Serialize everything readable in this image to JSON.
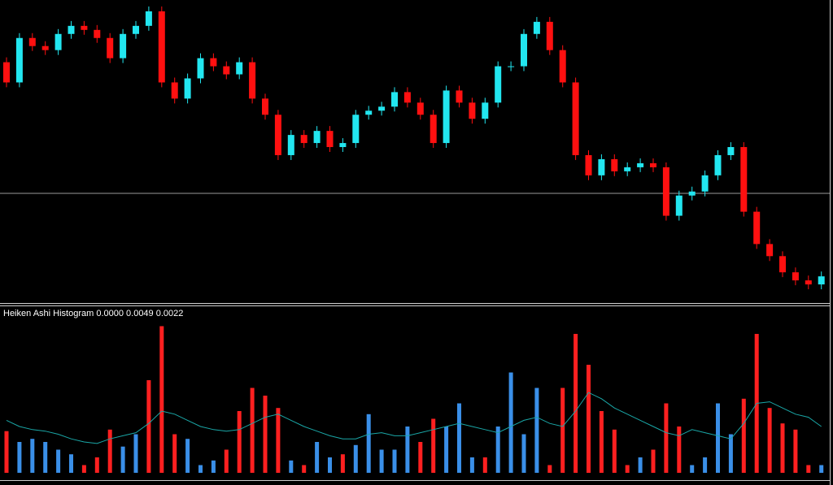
{
  "chart_data": [
    {
      "type": "candlestick",
      "up_color": "#22e6f0",
      "down_color": "#ff1010",
      "ylim": [
        0,
        370
      ],
      "open": [
        295,
        270,
        325,
        315,
        310,
        330,
        340,
        335,
        325,
        300,
        330,
        340,
        358,
        270,
        250,
        275,
        300,
        290,
        280,
        295,
        250,
        230,
        180,
        205,
        195,
        210,
        190,
        195,
        230,
        235,
        240,
        258,
        245,
        230,
        195,
        260,
        245,
        225,
        245,
        290,
        290,
        330,
        345,
        310,
        270,
        180,
        155,
        175,
        160,
        165,
        170,
        165,
        105,
        130,
        135,
        155,
        180,
        190,
        110,
        70,
        55,
        35,
        25,
        20
      ],
      "high": [
        301,
        331,
        331,
        321,
        336,
        346,
        346,
        341,
        331,
        336,
        346,
        364,
        364,
        276,
        281,
        306,
        306,
        296,
        301,
        301,
        256,
        236,
        211,
        211,
        216,
        216,
        201,
        236,
        241,
        246,
        264,
        264,
        251,
        236,
        266,
        266,
        251,
        251,
        296,
        296,
        336,
        351,
        351,
        316,
        276,
        186,
        181,
        181,
        171,
        176,
        176,
        171,
        136,
        141,
        161,
        186,
        196,
        196,
        116,
        76,
        61,
        41,
        31,
        36
      ],
      "low": [
        264,
        264,
        309,
        304,
        304,
        324,
        329,
        319,
        294,
        294,
        324,
        334,
        264,
        244,
        244,
        269,
        284,
        274,
        274,
        244,
        224,
        174,
        174,
        189,
        189,
        184,
        184,
        189,
        224,
        229,
        234,
        239,
        224,
        189,
        189,
        239,
        219,
        219,
        239,
        284,
        284,
        324,
        304,
        264,
        174,
        149,
        149,
        154,
        154,
        159,
        159,
        99,
        99,
        124,
        129,
        149,
        174,
        104,
        64,
        49,
        29,
        19,
        14,
        14
      ],
      "close": [
        270,
        325,
        315,
        310,
        330,
        340,
        335,
        325,
        300,
        330,
        340,
        358,
        270,
        250,
        275,
        300,
        290,
        280,
        295,
        250,
        230,
        180,
        205,
        195,
        210,
        190,
        195,
        230,
        235,
        240,
        258,
        245,
        230,
        195,
        260,
        245,
        225,
        245,
        290,
        290,
        330,
        345,
        310,
        270,
        180,
        155,
        175,
        160,
        165,
        170,
        165,
        105,
        130,
        135,
        155,
        180,
        190,
        110,
        70,
        55,
        35,
        25,
        20,
        30
      ]
    },
    {
      "type": "histogram",
      "title": "Heiken Ashi Histogram 0.0000 0.0049 0.0022",
      "ylim": [
        0,
        100
      ],
      "values": [
        27,
        20,
        22,
        20,
        15,
        12,
        5,
        10,
        28,
        17,
        25,
        60,
        95,
        25,
        22,
        5,
        8,
        15,
        40,
        55,
        50,
        42,
        8,
        5,
        20,
        10,
        12,
        18,
        38,
        15,
        15,
        30,
        20,
        35,
        30,
        45,
        10,
        10,
        30,
        65,
        25,
        55,
        5,
        55,
        90,
        70,
        40,
        28,
        5,
        10,
        15,
        45,
        30,
        5,
        10,
        45,
        25,
        48,
        90,
        42,
        32,
        28,
        5,
        5
      ],
      "colors": [
        "#ff2020",
        "#3a8fe8",
        "#3a8fe8",
        "#3a8fe8",
        "#3a8fe8",
        "#3a8fe8",
        "#ff2020",
        "#ff2020",
        "#ff2020",
        "#3a8fe8",
        "#3a8fe8",
        "#ff2020",
        "#ff2020",
        "#ff2020",
        "#3a8fe8",
        "#3a8fe8",
        "#3a8fe8",
        "#ff2020",
        "#ff2020",
        "#ff2020",
        "#ff2020",
        "#ff2020",
        "#3a8fe8",
        "#ff2020",
        "#3a8fe8",
        "#3a8fe8",
        "#ff2020",
        "#3a8fe8",
        "#3a8fe8",
        "#3a8fe8",
        "#3a8fe8",
        "#3a8fe8",
        "#ff2020",
        "#ff2020",
        "#3a8fe8",
        "#3a8fe8",
        "#3a8fe8",
        "#ff2020",
        "#3a8fe8",
        "#3a8fe8",
        "#3a8fe8",
        "#3a8fe8",
        "#ff2020",
        "#ff2020",
        "#ff2020",
        "#ff2020",
        "#ff2020",
        "#ff2020",
        "#ff2020",
        "#3a8fe8",
        "#ff2020",
        "#ff2020",
        "#ff2020",
        "#3a8fe8",
        "#3a8fe8",
        "#3a8fe8",
        "#3a8fe8",
        "#ff2020",
        "#ff2020",
        "#ff2020",
        "#ff2020",
        "#ff2020",
        "#ff2020",
        "#3a8fe8"
      ],
      "signal": {
        "color": "#1aa7a7",
        "values": [
          34,
          30,
          28,
          27,
          25,
          22,
          20,
          19,
          22,
          24,
          26,
          32,
          40,
          38,
          34,
          30,
          28,
          27,
          28,
          32,
          36,
          38,
          34,
          30,
          27,
          24,
          22,
          22,
          25,
          26,
          24,
          24,
          26,
          28,
          30,
          32,
          30,
          28,
          26,
          30,
          34,
          36,
          32,
          30,
          40,
          52,
          48,
          42,
          38,
          34,
          30,
          26,
          24,
          28,
          26,
          24,
          22,
          32,
          45,
          46,
          42,
          38,
          36,
          30
        ]
      }
    }
  ]
}
